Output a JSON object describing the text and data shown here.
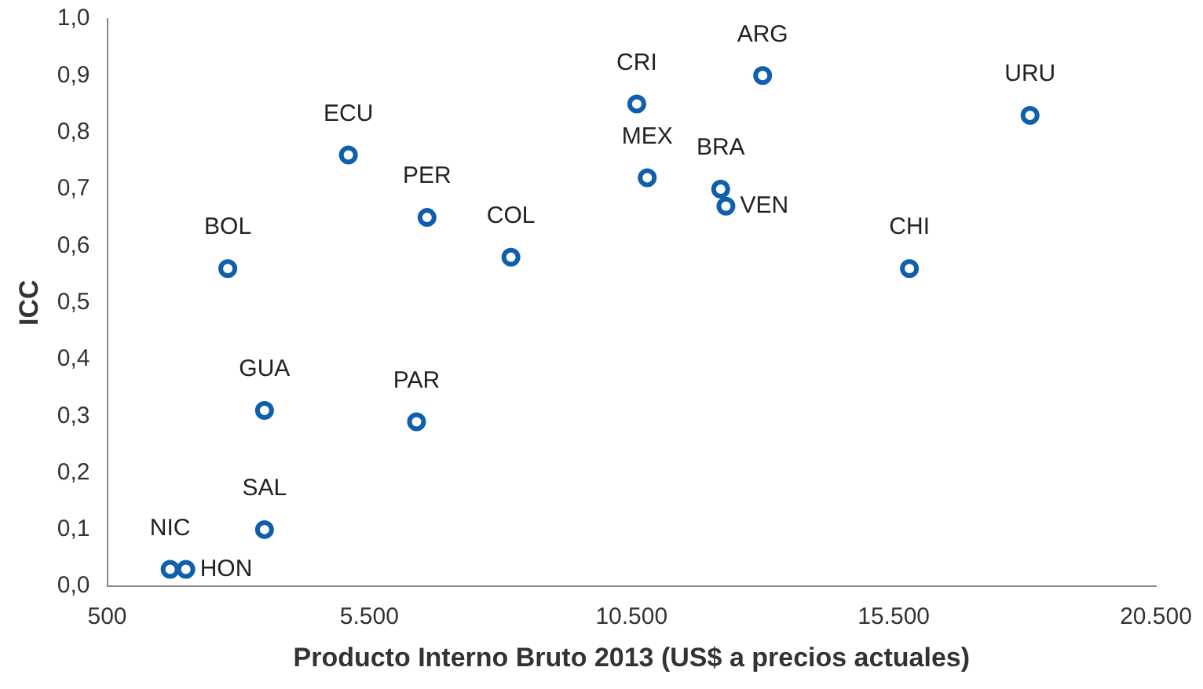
{
  "chart_data": {
    "type": "scatter",
    "xlabel": "Producto Interno Bruto 2013 (US$ a precios actuales)",
    "ylabel": "ICC",
    "x": [
      1700,
      2000,
      3500,
      3500,
      2800,
      5100,
      6600,
      6400,
      8200,
      10600,
      10800,
      13000,
      12200,
      12300,
      15800,
      18100
    ],
    "series": [
      {
        "color": "#0f5fac",
        "values": [
          0.03,
          0.03,
          0.1,
          0.31,
          0.56,
          0.76,
          0.65,
          0.29,
          0.58,
          0.85,
          0.72,
          0.9,
          0.7,
          0.67,
          0.56,
          0.83
        ]
      }
    ],
    "marker": "circle",
    "grid": false,
    "legend": false,
    "xlim": [
      500,
      20500
    ],
    "xticks": [
      {
        "value": 500,
        "label": "500"
      },
      {
        "value": 5500,
        "label": "5.500"
      },
      {
        "value": 10500,
        "label": "10.500"
      },
      {
        "value": 15500,
        "label": "15.500"
      },
      {
        "value": 20500,
        "label": "20.500"
      }
    ],
    "ylim": [
      0,
      1
    ],
    "yticks": [
      {
        "value": 0,
        "label": "0,0"
      },
      {
        "value": 0.1,
        "label": "0,1"
      },
      {
        "value": 0.2,
        "label": "0,2"
      },
      {
        "value": 0.3,
        "label": "0,3"
      },
      {
        "value": 0.4,
        "label": "0,4"
      },
      {
        "value": 0.5,
        "label": "0,5"
      },
      {
        "value": 0.6,
        "label": "0,6"
      },
      {
        "value": 0.7,
        "label": "0,7"
      },
      {
        "value": 0.8,
        "label": "0,8"
      },
      {
        "value": 0.9,
        "label": "0,9"
      },
      {
        "value": 1,
        "label": "1,0"
      }
    ],
    "annotations": [
      {
        "text": "NIC",
        "x": 1700,
        "y": 0.03
      },
      {
        "text": "HON",
        "x": 2000,
        "y": 0.03
      },
      {
        "text": "SAL",
        "x": 3500,
        "y": 0.1
      },
      {
        "text": "GUA",
        "x": 3500,
        "y": 0.31
      },
      {
        "text": "BOL",
        "x": 2800,
        "y": 0.56
      },
      {
        "text": "ECU",
        "x": 5100,
        "y": 0.76
      },
      {
        "text": "PER",
        "x": 6600,
        "y": 0.65
      },
      {
        "text": "PAR",
        "x": 6400,
        "y": 0.29
      },
      {
        "text": "COL",
        "x": 8200,
        "y": 0.58
      },
      {
        "text": "CRI",
        "x": 10600,
        "y": 0.85
      },
      {
        "text": "MEX",
        "x": 10800,
        "y": 0.72
      },
      {
        "text": "ARG",
        "x": 13000,
        "y": 0.9
      },
      {
        "text": "BRA",
        "x": 12200,
        "y": 0.7
      },
      {
        "text": "VEN",
        "x": 12300,
        "y": 0.67
      },
      {
        "text": "CHI",
        "x": 15800,
        "y": 0.56
      },
      {
        "text": "URU",
        "x": 18100,
        "y": 0.83
      }
    ]
  }
}
